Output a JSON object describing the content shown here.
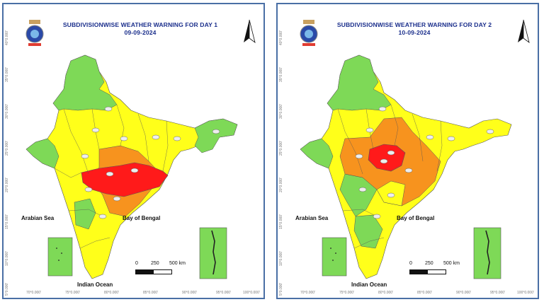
{
  "panels": [
    {
      "title_line1": "SUBDIVISIONWISE WEATHER WARNING FOR DAY 1",
      "title_line2": "09-09-2024",
      "labels": {
        "arabian_sea": "Arabian Sea",
        "bay_of_bengal": "Bay of Bengal",
        "indian_ocean": "Indian Ocean"
      },
      "scale": {
        "n0": "0",
        "n1": "250",
        "n2": "500 km"
      },
      "lat_ticks": [
        "40°0.000'",
        "35°0.000'",
        "30°0.000'",
        "25°0.000'",
        "20°0.000'",
        "15°0.000'",
        "10°0.000'",
        "5°0.000'"
      ],
      "lon_ticks": [
        "70°0.000'",
        "75°0.000'",
        "80°0.000'",
        "85°0.000'",
        "90°0.000'",
        "95°0.000'",
        "100°0.000'"
      ]
    },
    {
      "title_line1": "SUBDIVISIONWISE WEATHER WARNING FOR DAY 2",
      "title_line2": "10-09-2024",
      "labels": {
        "arabian_sea": "Arabian Sea",
        "bay_of_bengal": "Bay of Bengal",
        "indian_ocean": "Indian Ocean"
      },
      "scale": {
        "n0": "0",
        "n1": "250",
        "n2": "500 km"
      },
      "lat_ticks": [
        "40°0.000'",
        "35°0.000'",
        "30°0.000'",
        "25°0.000'",
        "20°0.000'",
        "15°0.000'",
        "10°0.000'",
        "5°0.000'"
      ],
      "lon_ticks": [
        "70°0.000'",
        "75°0.000'",
        "80°0.000'",
        "85°0.000'",
        "90°0.000'",
        "95°0.000'",
        "100°0.000'"
      ]
    }
  ],
  "colors": {
    "no_warning": "#7ED957",
    "watch": "#FFFF00",
    "alert": "#F7931E",
    "warning": "#FF0000",
    "border": "#4a6fa5"
  },
  "icons": [
    "emblem-icon",
    "north-arrow-icon",
    "cloud-rain-icon"
  ]
}
